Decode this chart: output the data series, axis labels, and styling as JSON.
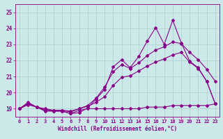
{
  "xlabel": "Windchill (Refroidissement éolien,°C)",
  "xlim": [
    -0.5,
    23.5
  ],
  "ylim": [
    18.5,
    25.5
  ],
  "yticks": [
    19,
    20,
    21,
    22,
    23,
    24,
    25
  ],
  "xticks": [
    0,
    1,
    2,
    3,
    4,
    5,
    6,
    7,
    8,
    9,
    10,
    11,
    12,
    13,
    14,
    15,
    16,
    17,
    18,
    19,
    20,
    21,
    22,
    23
  ],
  "background_color": "#cce8e8",
  "grid_color": "#aacece",
  "line_color": "#880088",
  "line1_y": [
    19.0,
    19.3,
    19.1,
    18.9,
    18.85,
    18.85,
    18.7,
    18.9,
    19.0,
    19.0,
    19.0,
    19.0,
    19.0,
    19.0,
    19.0,
    19.1,
    19.1,
    19.1,
    19.2,
    19.2,
    19.2,
    19.2,
    19.2,
    19.3
  ],
  "line2_y": [
    19.0,
    19.4,
    19.1,
    18.85,
    18.85,
    18.85,
    18.7,
    18.75,
    19.05,
    19.6,
    20.2,
    21.6,
    22.05,
    21.55,
    22.25,
    23.2,
    24.05,
    23.0,
    24.5,
    23.1,
    21.95,
    21.55,
    20.7,
    19.3
  ],
  "line3_y": [
    19.0,
    19.35,
    19.1,
    19.0,
    18.9,
    18.9,
    18.8,
    19.0,
    19.2,
    19.65,
    20.35,
    21.3,
    21.75,
    21.5,
    21.85,
    22.3,
    22.65,
    22.85,
    23.15,
    23.05,
    22.5,
    22.05,
    21.45,
    20.7
  ],
  "line4_y": [
    19.0,
    19.25,
    19.1,
    18.95,
    18.9,
    18.9,
    18.85,
    19.0,
    19.15,
    19.4,
    19.75,
    20.45,
    20.95,
    21.05,
    21.35,
    21.65,
    21.9,
    22.1,
    22.35,
    22.5,
    21.9,
    21.5,
    20.7,
    19.3
  ]
}
